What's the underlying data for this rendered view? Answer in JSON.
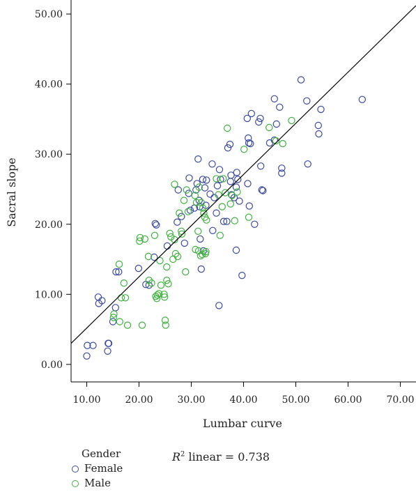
{
  "colors": {
    "female": "#3b4aa0",
    "male": "#3db33d",
    "line": "#000000",
    "axis": "#000000"
  },
  "legend": {
    "title": "Gender",
    "items": [
      {
        "label": "Female",
        "color": "#3b4aa0"
      },
      {
        "label": "Male",
        "color": "#3db33d"
      }
    ]
  },
  "annotation": {
    "symbol": "R",
    "sup": "2",
    "text": " linear = 0.738"
  },
  "chart_data": {
    "type": "scatter",
    "xlabel": "Lumbar curve",
    "ylabel": "Sacral slope",
    "xlim": [
      7.0,
      73.0
    ],
    "ylim": [
      -2.5,
      52.0
    ],
    "xticks": [
      10,
      20,
      30,
      40,
      50,
      60,
      70
    ],
    "yticks": [
      0,
      10,
      20,
      30,
      40,
      50
    ],
    "tick_format": 2,
    "grid": false,
    "legend_position": "bottom-left",
    "fit_line": {
      "x": [
        7.0,
        73.0
      ],
      "y": [
        3.0,
        51.2
      ]
    },
    "series": [
      {
        "name": "Female",
        "color": "#3b4aa0",
        "points": [
          [
            10.1,
            2.7
          ],
          [
            11.2,
            2.7
          ],
          [
            10.0,
            1.2
          ],
          [
            14.1,
            3.0
          ],
          [
            14.0,
            1.9
          ],
          [
            14.2,
            3.0
          ],
          [
            12.2,
            9.6
          ],
          [
            12.3,
            8.7
          ],
          [
            12.9,
            9.1
          ],
          [
            15.0,
            6.1
          ],
          [
            15.5,
            8.1
          ],
          [
            15.6,
            13.2
          ],
          [
            16.1,
            13.2
          ],
          [
            19.9,
            13.7
          ],
          [
            21.3,
            11.4
          ],
          [
            21.9,
            11.3
          ],
          [
            22.9,
            15.3
          ],
          [
            23.1,
            20.1
          ],
          [
            23.3,
            19.9
          ],
          [
            25.4,
            16.9
          ],
          [
            27.3,
            20.3
          ],
          [
            27.5,
            24.9
          ],
          [
            28.1,
            21.1
          ],
          [
            28.7,
            17.3
          ],
          [
            29.5,
            24.4
          ],
          [
            29.6,
            26.6
          ],
          [
            29.8,
            22.0
          ],
          [
            30.6,
            22.3
          ],
          [
            30.9,
            24.9
          ],
          [
            31.1,
            25.8
          ],
          [
            31.3,
            29.3
          ],
          [
            31.5,
            23.4
          ],
          [
            31.6,
            22.5
          ],
          [
            31.7,
            17.9
          ],
          [
            31.9,
            13.6
          ],
          [
            32.2,
            26.4
          ],
          [
            32.3,
            16.2
          ],
          [
            32.6,
            25.2
          ],
          [
            32.8,
            22.7
          ],
          [
            32.9,
            26.3
          ],
          [
            33.6,
            24.3
          ],
          [
            34.0,
            28.6
          ],
          [
            34.1,
            19.1
          ],
          [
            34.4,
            23.8
          ],
          [
            34.8,
            21.6
          ],
          [
            35.0,
            25.5
          ],
          [
            35.3,
            8.4
          ],
          [
            35.4,
            27.8
          ],
          [
            35.6,
            26.4
          ],
          [
            36.2,
            20.4
          ],
          [
            36.8,
            20.4
          ],
          [
            37.0,
            30.9
          ],
          [
            37.4,
            31.4
          ],
          [
            37.5,
            26.1
          ],
          [
            37.6,
            27.0
          ],
          [
            37.7,
            24.2
          ],
          [
            38.2,
            23.8
          ],
          [
            38.6,
            25.3
          ],
          [
            38.6,
            16.3
          ],
          [
            38.7,
            27.4
          ],
          [
            38.9,
            26.4
          ],
          [
            39.2,
            23.3
          ],
          [
            39.7,
            12.7
          ],
          [
            40.7,
            35.1
          ],
          [
            40.8,
            25.8
          ],
          [
            40.9,
            32.3
          ],
          [
            41.0,
            31.6
          ],
          [
            41.1,
            22.6
          ],
          [
            41.3,
            31.5
          ],
          [
            41.5,
            35.8
          ],
          [
            42.1,
            20.0
          ],
          [
            42.9,
            34.6
          ],
          [
            43.2,
            35.1
          ],
          [
            43.3,
            28.3
          ],
          [
            43.5,
            24.9
          ],
          [
            43.7,
            24.8
          ],
          [
            45.0,
            31.6
          ],
          [
            45.9,
            37.9
          ],
          [
            45.9,
            32.0
          ],
          [
            46.3,
            34.3
          ],
          [
            46.9,
            36.7
          ],
          [
            47.3,
            28.0
          ],
          [
            47.3,
            27.3
          ],
          [
            51.0,
            40.6
          ],
          [
            52.1,
            37.6
          ],
          [
            52.3,
            28.6
          ],
          [
            54.3,
            34.1
          ],
          [
            54.4,
            32.9
          ],
          [
            54.8,
            36.4
          ],
          [
            62.7,
            37.8
          ]
        ]
      },
      {
        "name": "Male",
        "color": "#3db33d",
        "points": [
          [
            15.1,
            6.7
          ],
          [
            15.2,
            7.2
          ],
          [
            16.2,
            14.3
          ],
          [
            16.6,
            9.5
          ],
          [
            16.3,
            6.1
          ],
          [
            17.1,
            11.6
          ],
          [
            17.4,
            9.5
          ],
          [
            17.8,
            5.6
          ],
          [
            20.1,
            17.6
          ],
          [
            20.2,
            18.1
          ],
          [
            20.6,
            5.6
          ],
          [
            21.1,
            17.9
          ],
          [
            21.8,
            15.4
          ],
          [
            21.9,
            12.0
          ],
          [
            22.4,
            11.6
          ],
          [
            23.0,
            18.4
          ],
          [
            23.2,
            9.7
          ],
          [
            23.4,
            9.4
          ],
          [
            23.5,
            9.9
          ],
          [
            23.8,
            10.1
          ],
          [
            24.0,
            14.8
          ],
          [
            24.2,
            11.3
          ],
          [
            24.8,
            10.0
          ],
          [
            24.9,
            9.6
          ],
          [
            25.0,
            6.3
          ],
          [
            25.1,
            5.6
          ],
          [
            25.3,
            12.0
          ],
          [
            25.3,
            13.9
          ],
          [
            25.6,
            11.5
          ],
          [
            25.9,
            18.7
          ],
          [
            26.1,
            18.2
          ],
          [
            26.5,
            15.0
          ],
          [
            26.8,
            17.8
          ],
          [
            26.8,
            25.7
          ],
          [
            27.0,
            15.8
          ],
          [
            27.4,
            15.4
          ],
          [
            27.7,
            21.6
          ],
          [
            28.1,
            19.0
          ],
          [
            28.2,
            18.6
          ],
          [
            28.6,
            23.4
          ],
          [
            28.9,
            13.2
          ],
          [
            29.1,
            24.9
          ],
          [
            29.4,
            21.8
          ],
          [
            30.7,
            24.1
          ],
          [
            30.8,
            16.4
          ],
          [
            31.0,
            23.1
          ],
          [
            31.3,
            19.0
          ],
          [
            31.4,
            16.2
          ],
          [
            31.5,
            25.3
          ],
          [
            31.8,
            15.5
          ],
          [
            31.9,
            23.1
          ],
          [
            32.1,
            15.7
          ],
          [
            32.2,
            22.3
          ],
          [
            32.4,
            21.6
          ],
          [
            32.6,
            21.0
          ],
          [
            32.7,
            15.8
          ],
          [
            32.8,
            16.1
          ],
          [
            32.9,
            20.6
          ],
          [
            34.8,
            26.5
          ],
          [
            35.2,
            24.2
          ],
          [
            35.5,
            18.4
          ],
          [
            35.9,
            22.5
          ],
          [
            36.1,
            26.5
          ],
          [
            36.5,
            24.5
          ],
          [
            36.9,
            33.7
          ],
          [
            37.5,
            22.9
          ],
          [
            37.8,
            24.1
          ],
          [
            38.3,
            20.5
          ],
          [
            38.8,
            24.6
          ],
          [
            40.1,
            30.7
          ],
          [
            41.0,
            21.0
          ],
          [
            44.9,
            33.8
          ],
          [
            46.2,
            31.9
          ],
          [
            47.5,
            31.5
          ],
          [
            49.2,
            34.8
          ]
        ]
      }
    ]
  }
}
